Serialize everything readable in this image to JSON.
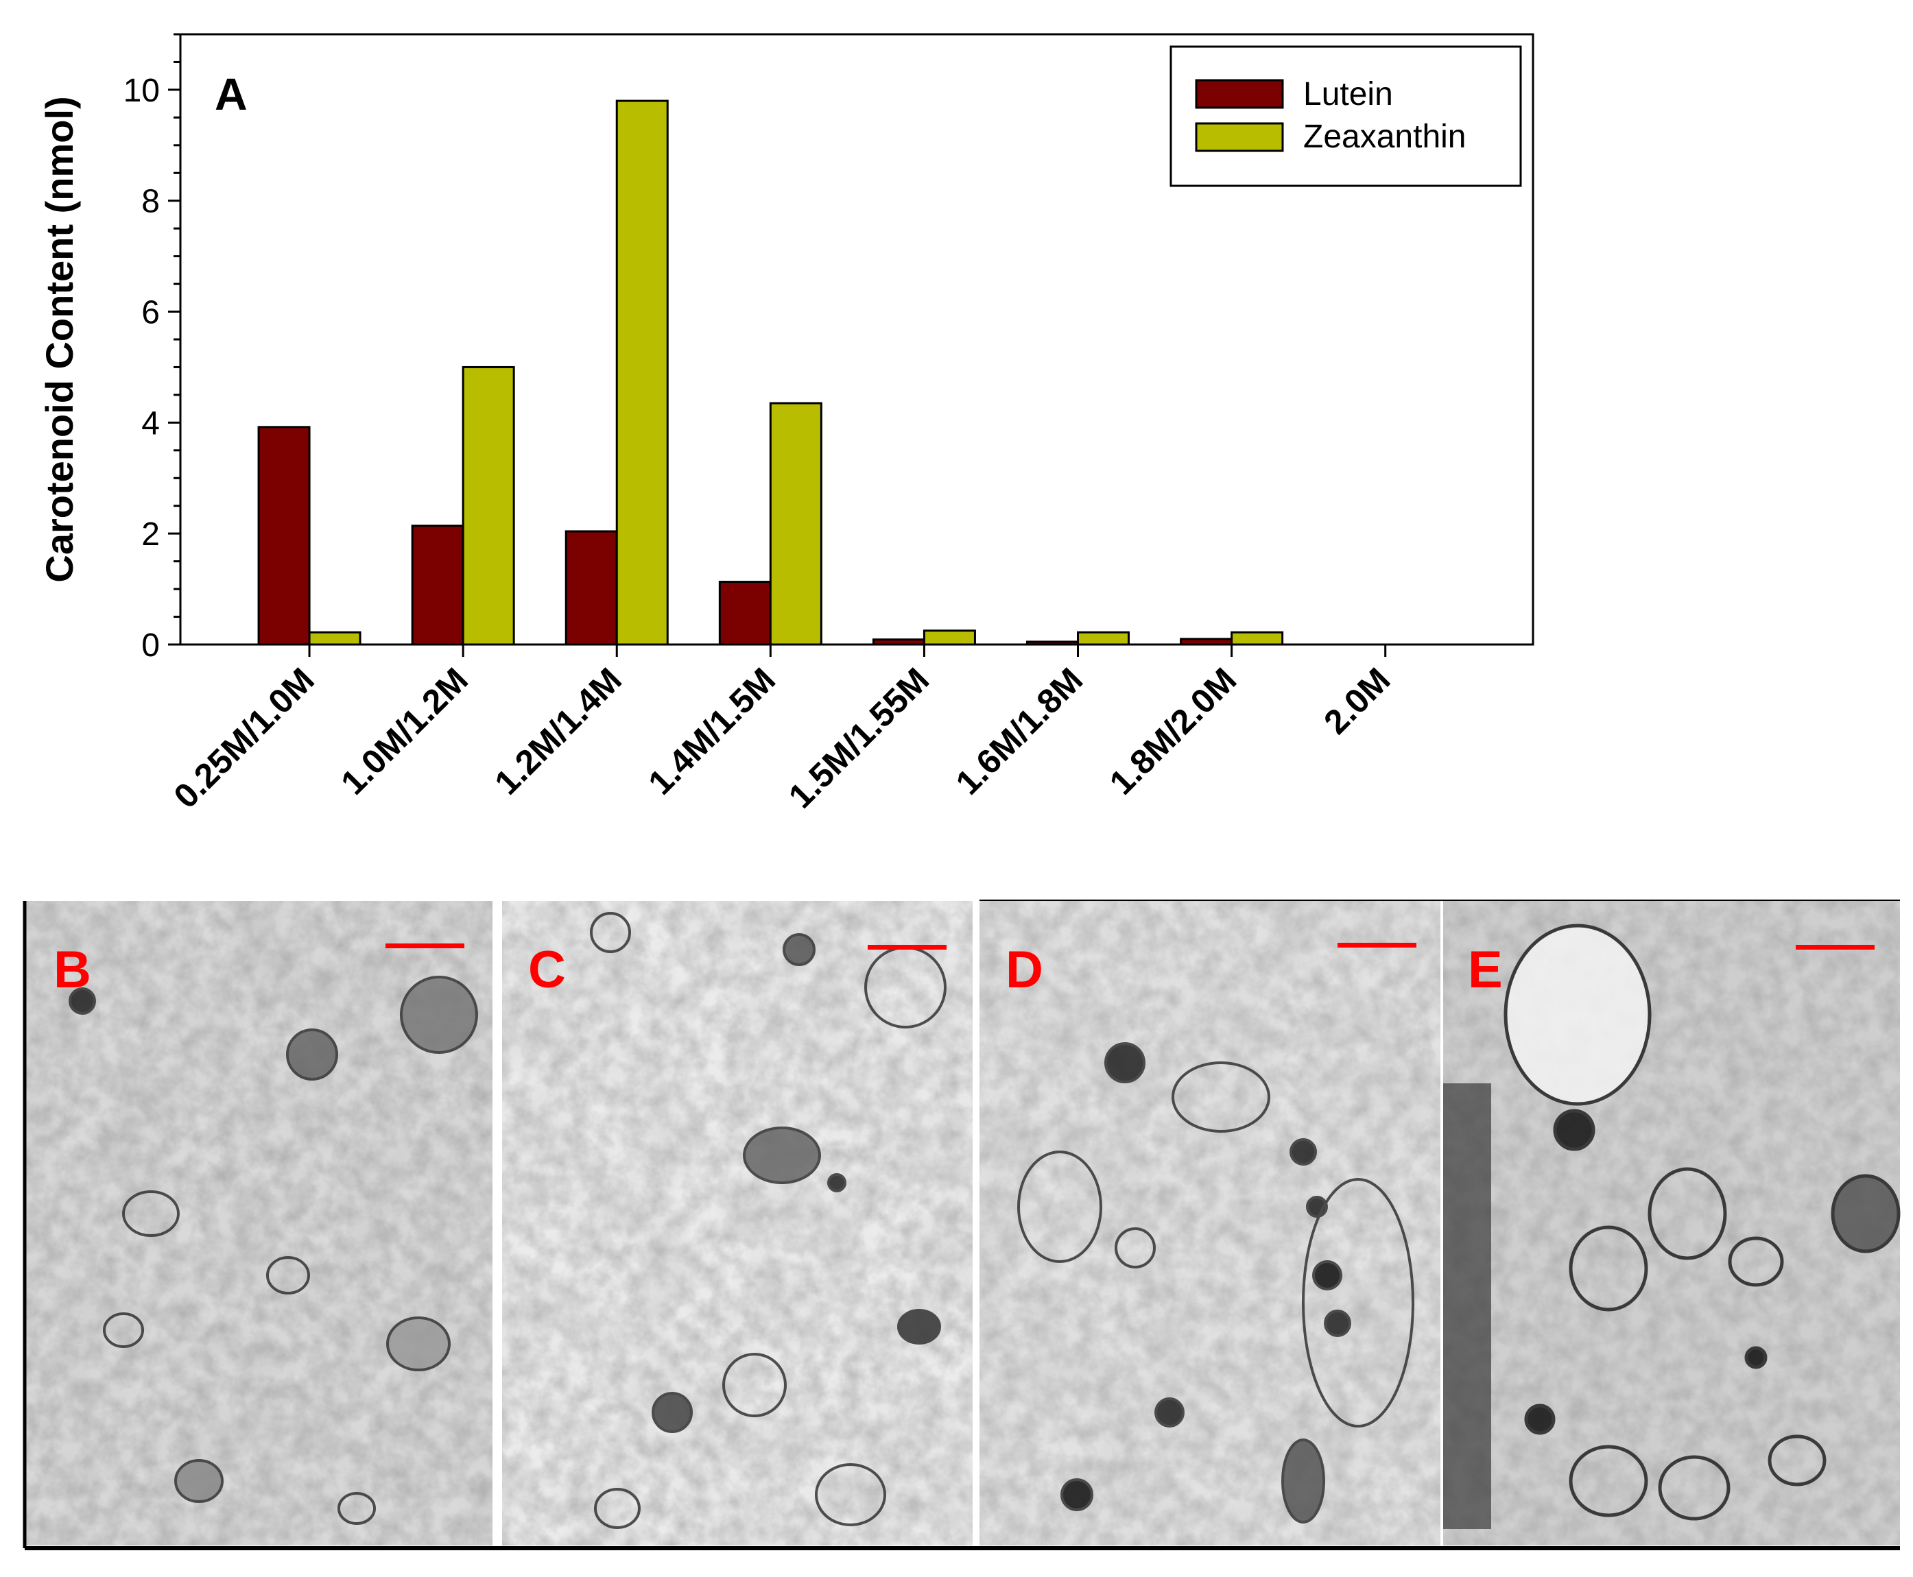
{
  "chart_data": {
    "type": "bar",
    "panel_label": "A",
    "ylabel": "Carotenoid Content (nmol)",
    "xlabel": "",
    "ylim": [
      0,
      11
    ],
    "yticks": [
      0,
      2,
      4,
      6,
      8,
      10
    ],
    "categories": [
      "0.25M/1.0M",
      "1.0M/1.2M",
      "1.2M/1.4M",
      "1.4M/1.5M",
      "1.5M/1.55M",
      "1.6M/1.8M",
      "1.8M/2.0M",
      "2.0M"
    ],
    "series": [
      {
        "name": "Lutein",
        "color": "#7b0000",
        "values": [
          3.92,
          2.14,
          2.04,
          1.13,
          0.09,
          0.05,
          0.1,
          0
        ]
      },
      {
        "name": "Zeaxanthin",
        "color": "#b8bd00",
        "values": [
          0.22,
          5.0,
          9.8,
          4.35,
          0.25,
          0.22,
          0.22,
          0
        ]
      }
    ],
    "legend_position": "top-right",
    "grid": false
  },
  "micrographs": {
    "label_color": "#ff0000",
    "panels": [
      {
        "label": "B"
      },
      {
        "label": "C"
      },
      {
        "label": "D"
      },
      {
        "label": "E"
      }
    ]
  }
}
